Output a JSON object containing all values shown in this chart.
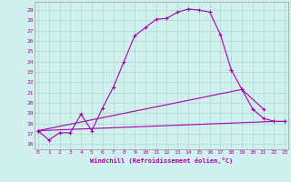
{
  "xlabel": "Windchill (Refroidissement éolien,°C)",
  "background_color": "#cff0ee",
  "grid_color": "#b0d8d0",
  "line_color": "#aa00aa",
  "x_ticks": [
    0,
    1,
    2,
    3,
    4,
    5,
    6,
    7,
    8,
    9,
    10,
    11,
    12,
    13,
    14,
    15,
    16,
    17,
    18,
    19,
    20,
    21,
    22,
    23
  ],
  "y_ticks": [
    16,
    17,
    18,
    19,
    20,
    21,
    22,
    23,
    24,
    25,
    26,
    27,
    28,
    29
  ],
  "xlim": [
    -0.3,
    23.3
  ],
  "ylim": [
    15.5,
    29.8
  ],
  "series1_x": [
    0,
    1,
    2,
    3,
    4,
    5,
    6,
    7,
    8,
    9,
    10,
    11,
    12,
    13,
    14,
    15,
    16,
    17,
    18
  ],
  "series1_y": [
    17.3,
    16.4,
    17.1,
    17.1,
    18.9,
    17.3,
    19.5,
    21.5,
    24.0,
    26.5,
    27.3,
    28.1,
    28.2,
    28.8,
    29.1,
    29.0,
    28.8,
    26.6,
    23.2
  ],
  "series2_x": [
    0,
    19,
    21
  ],
  "series2_y": [
    17.3,
    21.3,
    19.4
  ],
  "series3_x": [
    0,
    22,
    23
  ],
  "series3_y": [
    17.3,
    18.2,
    18.2
  ],
  "series4_x": [
    18,
    19,
    20,
    21,
    22,
    23
  ],
  "series4_y": [
    23.2,
    21.3,
    19.4,
    18.5,
    18.2,
    18.2
  ]
}
